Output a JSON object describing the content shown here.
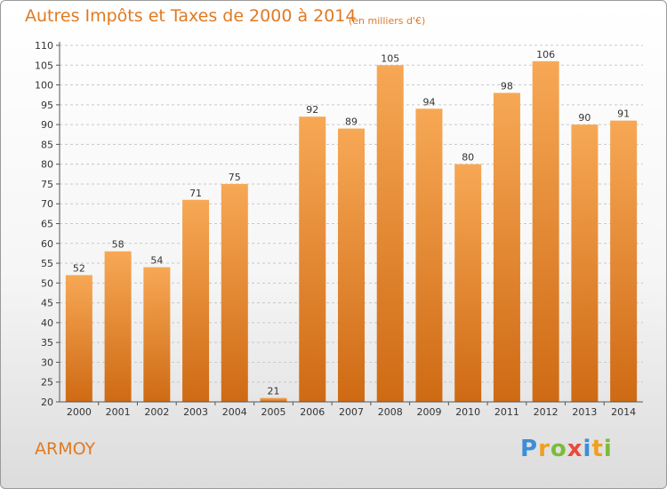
{
  "title": "Autres Impôts et Taxes de 2000 à 2014",
  "subtitle": "(en milliers d'€)",
  "commune": "ARMOY",
  "logo": {
    "letters": [
      "P",
      "r",
      "o",
      "x",
      "i",
      "t",
      "i"
    ],
    "colors": [
      "#3b8fd8",
      "#f0a020",
      "#7cbb3a",
      "#e84b3c",
      "#3b8fd8",
      "#f0a020",
      "#7cbb3a"
    ]
  },
  "colors": {
    "bar_top": "#f7a855",
    "bar_bottom": "#cf6a14",
    "accent": "#e07a22"
  },
  "chart_data": {
    "type": "bar",
    "title": "Autres Impôts et Taxes de 2000 à 2014",
    "subtitle": "(en milliers d'€)",
    "categories": [
      "2000",
      "2001",
      "2002",
      "2003",
      "2004",
      "2005",
      "2006",
      "2007",
      "2008",
      "2009",
      "2010",
      "2011",
      "2012",
      "2013",
      "2014"
    ],
    "values": [
      52,
      58,
      54,
      71,
      75,
      21,
      92,
      89,
      105,
      94,
      80,
      98,
      106,
      90,
      91
    ],
    "ylim": [
      20,
      110
    ],
    "yticks": [
      20,
      25,
      30,
      35,
      40,
      45,
      50,
      55,
      60,
      65,
      70,
      75,
      80,
      85,
      90,
      95,
      100,
      105,
      110
    ],
    "grid": "horizontal dashed",
    "legend": "none"
  }
}
